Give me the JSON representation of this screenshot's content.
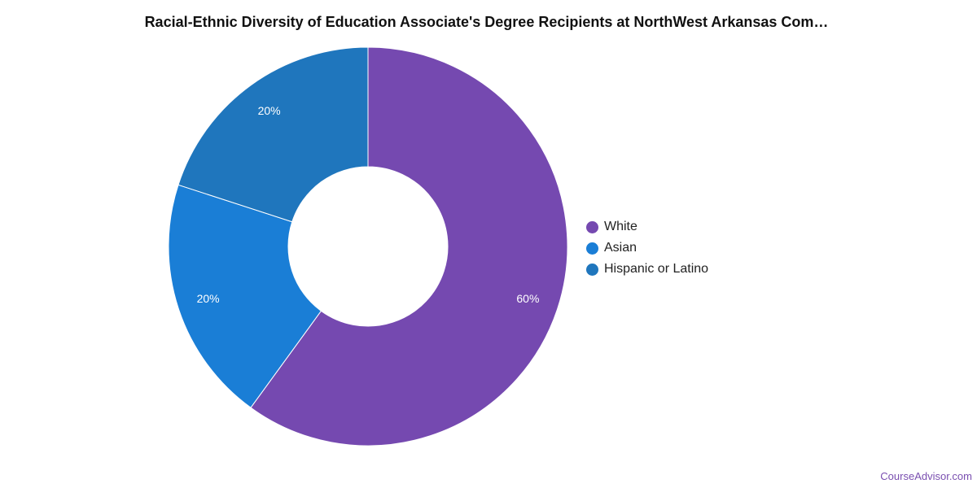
{
  "chart_data": {
    "type": "pie",
    "title": "Racial-Ethnic Diversity of Education Associate's Degree Recipients at NorthWest Arkansas Com…",
    "donut": true,
    "start": "top",
    "direction": "clockwise",
    "legend_position": "right",
    "categories": [
      "White",
      "Asian",
      "Hispanic or Latino"
    ],
    "values": [
      60,
      20,
      20
    ],
    "data_labels": [
      "60%",
      "20%",
      "20%"
    ],
    "colors": [
      "#7549b0",
      "#1a7ed6",
      "#1f76bd"
    ]
  },
  "footer": {
    "source": "CourseAdvisor.com"
  }
}
